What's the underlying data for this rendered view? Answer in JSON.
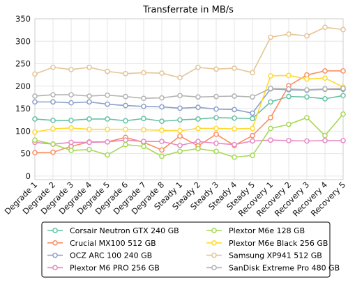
{
  "chart_data": {
    "type": "line",
    "title": "Transferrate in MB/s",
    "xlabel": "",
    "ylabel": "",
    "ylim": [
      -8,
      350
    ],
    "yticks": [
      0,
      50,
      100,
      150,
      200,
      250,
      300,
      350
    ],
    "grid": true,
    "legend_position": "bottom",
    "categories": [
      "Degrade 1",
      "Degrade 2",
      "Degrade 3",
      "Degrade 4",
      "Degrade 5",
      "Degrade 6",
      "Degrade 7",
      "Degrade 8",
      "Steady 1",
      "Steady 2",
      "Steady 3",
      "Steady 4",
      "Steady 5",
      "Recovery 1",
      "Recovery 2",
      "Recovery 3",
      "Recovery 4",
      "Recovery 5"
    ],
    "series": [
      {
        "name": "Corsair Neutron GTX 240 GB",
        "color": "#66c2a5",
        "values": [
          127,
          124,
          124,
          127,
          127,
          123,
          128,
          122,
          125,
          127,
          130,
          129,
          128,
          165,
          177,
          176,
          172,
          179
        ]
      },
      {
        "name": "Crucial MX100 512 GB",
        "color": "#fc8d62",
        "values": [
          52,
          53,
          66,
          76,
          76,
          86,
          75,
          58,
          89,
          67,
          93,
          68,
          90,
          130,
          201,
          225,
          234,
          234
        ]
      },
      {
        "name": "OCZ ARC 100 240 GB",
        "color": "#8da0cb",
        "values": [
          165,
          165,
          163,
          165,
          160,
          157,
          155,
          154,
          151,
          153,
          149,
          148,
          140,
          194,
          192,
          191,
          193,
          193
        ]
      },
      {
        "name": "Plextor M6 PRO 256 GB",
        "color": "#e78ac3",
        "values": [
          75,
          71,
          75,
          75,
          76,
          80,
          77,
          77,
          68,
          77,
          73,
          70,
          78,
          80,
          79,
          78,
          79,
          79
        ]
      },
      {
        "name": "Plextor M6e 128 GB",
        "color": "#a6d854",
        "values": [
          80,
          71,
          57,
          59,
          47,
          70,
          66,
          44,
          55,
          61,
          55,
          42,
          46,
          106,
          115,
          130,
          90,
          138
        ]
      },
      {
        "name": "Plextor M6e Black 256 GB",
        "color": "#ffd92f",
        "values": [
          98,
          105,
          107,
          104,
          104,
          104,
          103,
          102,
          101,
          106,
          106,
          105,
          106,
          223,
          224,
          216,
          218,
          198
        ]
      },
      {
        "name": "Samsung XP941 512 GB",
        "color": "#e5c494",
        "values": [
          227,
          242,
          237,
          242,
          233,
          228,
          230,
          229,
          219,
          242,
          238,
          240,
          230,
          309,
          316,
          312,
          331,
          326
        ]
      },
      {
        "name": "SanDisk Extreme Pro 480 GB",
        "color": "#b3b3b3",
        "values": [
          178,
          181,
          181,
          178,
          180,
          177,
          173,
          174,
          179,
          176,
          177,
          178,
          176,
          195,
          194,
          192,
          194,
          195
        ]
      }
    ]
  }
}
